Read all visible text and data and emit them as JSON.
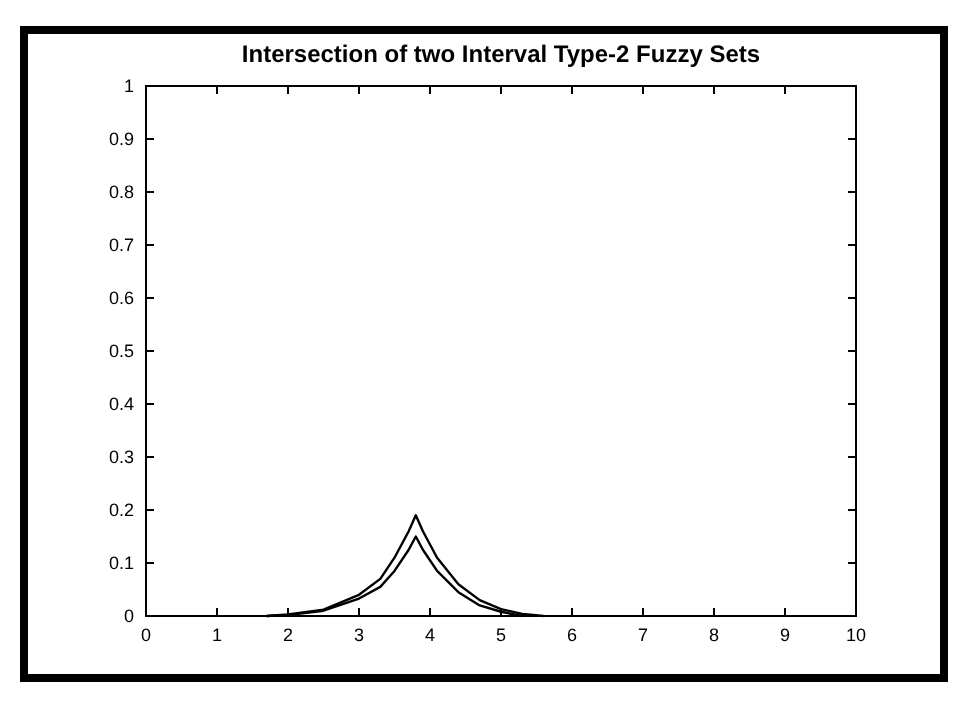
{
  "chart_data": {
    "type": "line",
    "title": "Intersection of two Interval Type-2 Fuzzy Sets",
    "series": [
      {
        "color": "#000000",
        "x": [
          1.7,
          2,
          2.5,
          3,
          3.3,
          3.5,
          3.7,
          3.8,
          3.9,
          4.1,
          4.4,
          4.7,
          5,
          5.3,
          5.6
        ],
        "values": [
          0,
          0.003,
          0.012,
          0.04,
          0.07,
          0.11,
          0.16,
          0.19,
          0.16,
          0.11,
          0.06,
          0.03,
          0.013,
          0.004,
          0
        ]
      },
      {
        "color": "#000000",
        "x": [
          1.7,
          2,
          2.5,
          3,
          3.3,
          3.5,
          3.7,
          3.8,
          3.9,
          4.1,
          4.4,
          4.7,
          5,
          5.3
        ],
        "values": [
          0,
          0.002,
          0.01,
          0.033,
          0.055,
          0.085,
          0.125,
          0.15,
          0.125,
          0.085,
          0.045,
          0.02,
          0.008,
          0
        ]
      }
    ],
    "xlim": [
      0,
      10
    ],
    "xticks": [
      0,
      1,
      2,
      3,
      4,
      5,
      6,
      7,
      8,
      9,
      10
    ],
    "ylim": [
      0,
      1
    ],
    "yticks": [
      0,
      0.1,
      0.2,
      0.3,
      0.4,
      0.5,
      0.6,
      0.7,
      0.8,
      0.9,
      1
    ],
    "marker": "none",
    "line_style": "solid"
  }
}
